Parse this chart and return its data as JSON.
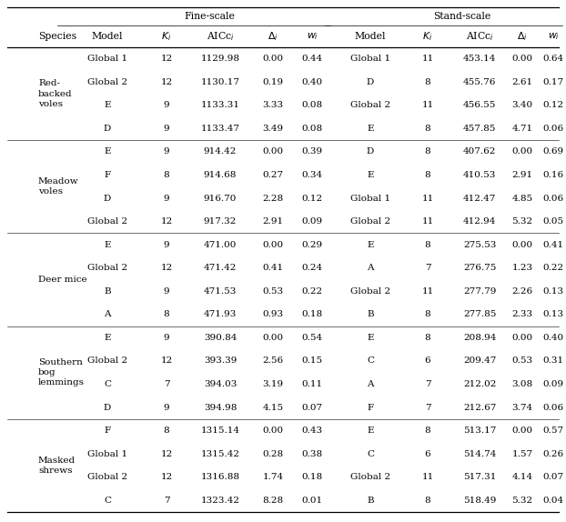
{
  "species_groups": [
    {
      "species": "Red-\nbacked\nvoles",
      "fine_rows": [
        [
          "Global 1",
          "12",
          "1129.98",
          "0.00",
          "0.44"
        ],
        [
          "Global 2",
          "12",
          "1130.17",
          "0.19",
          "0.40"
        ],
        [
          "E",
          "9",
          "1133.31",
          "3.33",
          "0.08"
        ],
        [
          "D",
          "9",
          "1133.47",
          "3.49",
          "0.08"
        ]
      ],
      "stand_rows": [
        [
          "Global 1",
          "11",
          "453.14",
          "0.00",
          "0.64"
        ],
        [
          "D",
          "8",
          "455.76",
          "2.61",
          "0.17"
        ],
        [
          "Global 2",
          "11",
          "456.55",
          "3.40",
          "0.12"
        ],
        [
          "E",
          "8",
          "457.85",
          "4.71",
          "0.06"
        ]
      ]
    },
    {
      "species": "Meadow\nvoles",
      "fine_rows": [
        [
          "E",
          "9",
          "914.42",
          "0.00",
          "0.39"
        ],
        [
          "F",
          "8",
          "914.68",
          "0.27",
          "0.34"
        ],
        [
          "D",
          "9",
          "916.70",
          "2.28",
          "0.12"
        ],
        [
          "Global 2",
          "12",
          "917.32",
          "2.91",
          "0.09"
        ]
      ],
      "stand_rows": [
        [
          "D",
          "8",
          "407.62",
          "0.00",
          "0.69"
        ],
        [
          "E",
          "8",
          "410.53",
          "2.91",
          "0.16"
        ],
        [
          "Global 1",
          "11",
          "412.47",
          "4.85",
          "0.06"
        ],
        [
          "Global 2",
          "11",
          "412.94",
          "5.32",
          "0.05"
        ]
      ]
    },
    {
      "species": "Deer mice",
      "fine_rows": [
        [
          "E",
          "9",
          "471.00",
          "0.00",
          "0.29"
        ],
        [
          "Global 2",
          "12",
          "471.42",
          "0.41",
          "0.24"
        ],
        [
          "B",
          "9",
          "471.53",
          "0.53",
          "0.22"
        ],
        [
          "A",
          "8",
          "471.93",
          "0.93",
          "0.18"
        ]
      ],
      "stand_rows": [
        [
          "E",
          "8",
          "275.53",
          "0.00",
          "0.41"
        ],
        [
          "A",
          "7",
          "276.75",
          "1.23",
          "0.22"
        ],
        [
          "Global 2",
          "11",
          "277.79",
          "2.26",
          "0.13"
        ],
        [
          "B",
          "8",
          "277.85",
          "2.33",
          "0.13"
        ]
      ]
    },
    {
      "species": "Southern\nbog\nlemmings",
      "fine_rows": [
        [
          "E",
          "9",
          "390.84",
          "0.00",
          "0.54"
        ],
        [
          "Global 2",
          "12",
          "393.39",
          "2.56",
          "0.15"
        ],
        [
          "C",
          "7",
          "394.03",
          "3.19",
          "0.11"
        ],
        [
          "D",
          "9",
          "394.98",
          "4.15",
          "0.07"
        ]
      ],
      "stand_rows": [
        [
          "E",
          "8",
          "208.94",
          "0.00",
          "0.40"
        ],
        [
          "C",
          "6",
          "209.47",
          "0.53",
          "0.31"
        ],
        [
          "A",
          "7",
          "212.02",
          "3.08",
          "0.09"
        ],
        [
          "F",
          "7",
          "212.67",
          "3.74",
          "0.06"
        ]
      ]
    },
    {
      "species": "Masked\nshrews",
      "fine_rows": [
        [
          "F",
          "8",
          "1315.14",
          "0.00",
          "0.43"
        ],
        [
          "Global 1",
          "12",
          "1315.42",
          "0.28",
          "0.38"
        ],
        [
          "Global 2",
          "12",
          "1316.88",
          "1.74",
          "0.18"
        ],
        [
          "C",
          "7",
          "1323.42",
          "8.28",
          "0.01"
        ]
      ],
      "stand_rows": [
        [
          "E",
          "8",
          "513.17",
          "0.00",
          "0.57"
        ],
        [
          "C",
          "6",
          "514.74",
          "1.57",
          "0.26"
        ],
        [
          "Global 2",
          "11",
          "517.31",
          "4.14",
          "0.07"
        ],
        [
          "B",
          "8",
          "518.49",
          "5.32",
          "0.04"
        ]
      ]
    }
  ],
  "bg_color": "#ffffff",
  "text_color": "#000000",
  "line_color": "#000000",
  "font_size": 7.5,
  "header_font_size": 7.8
}
